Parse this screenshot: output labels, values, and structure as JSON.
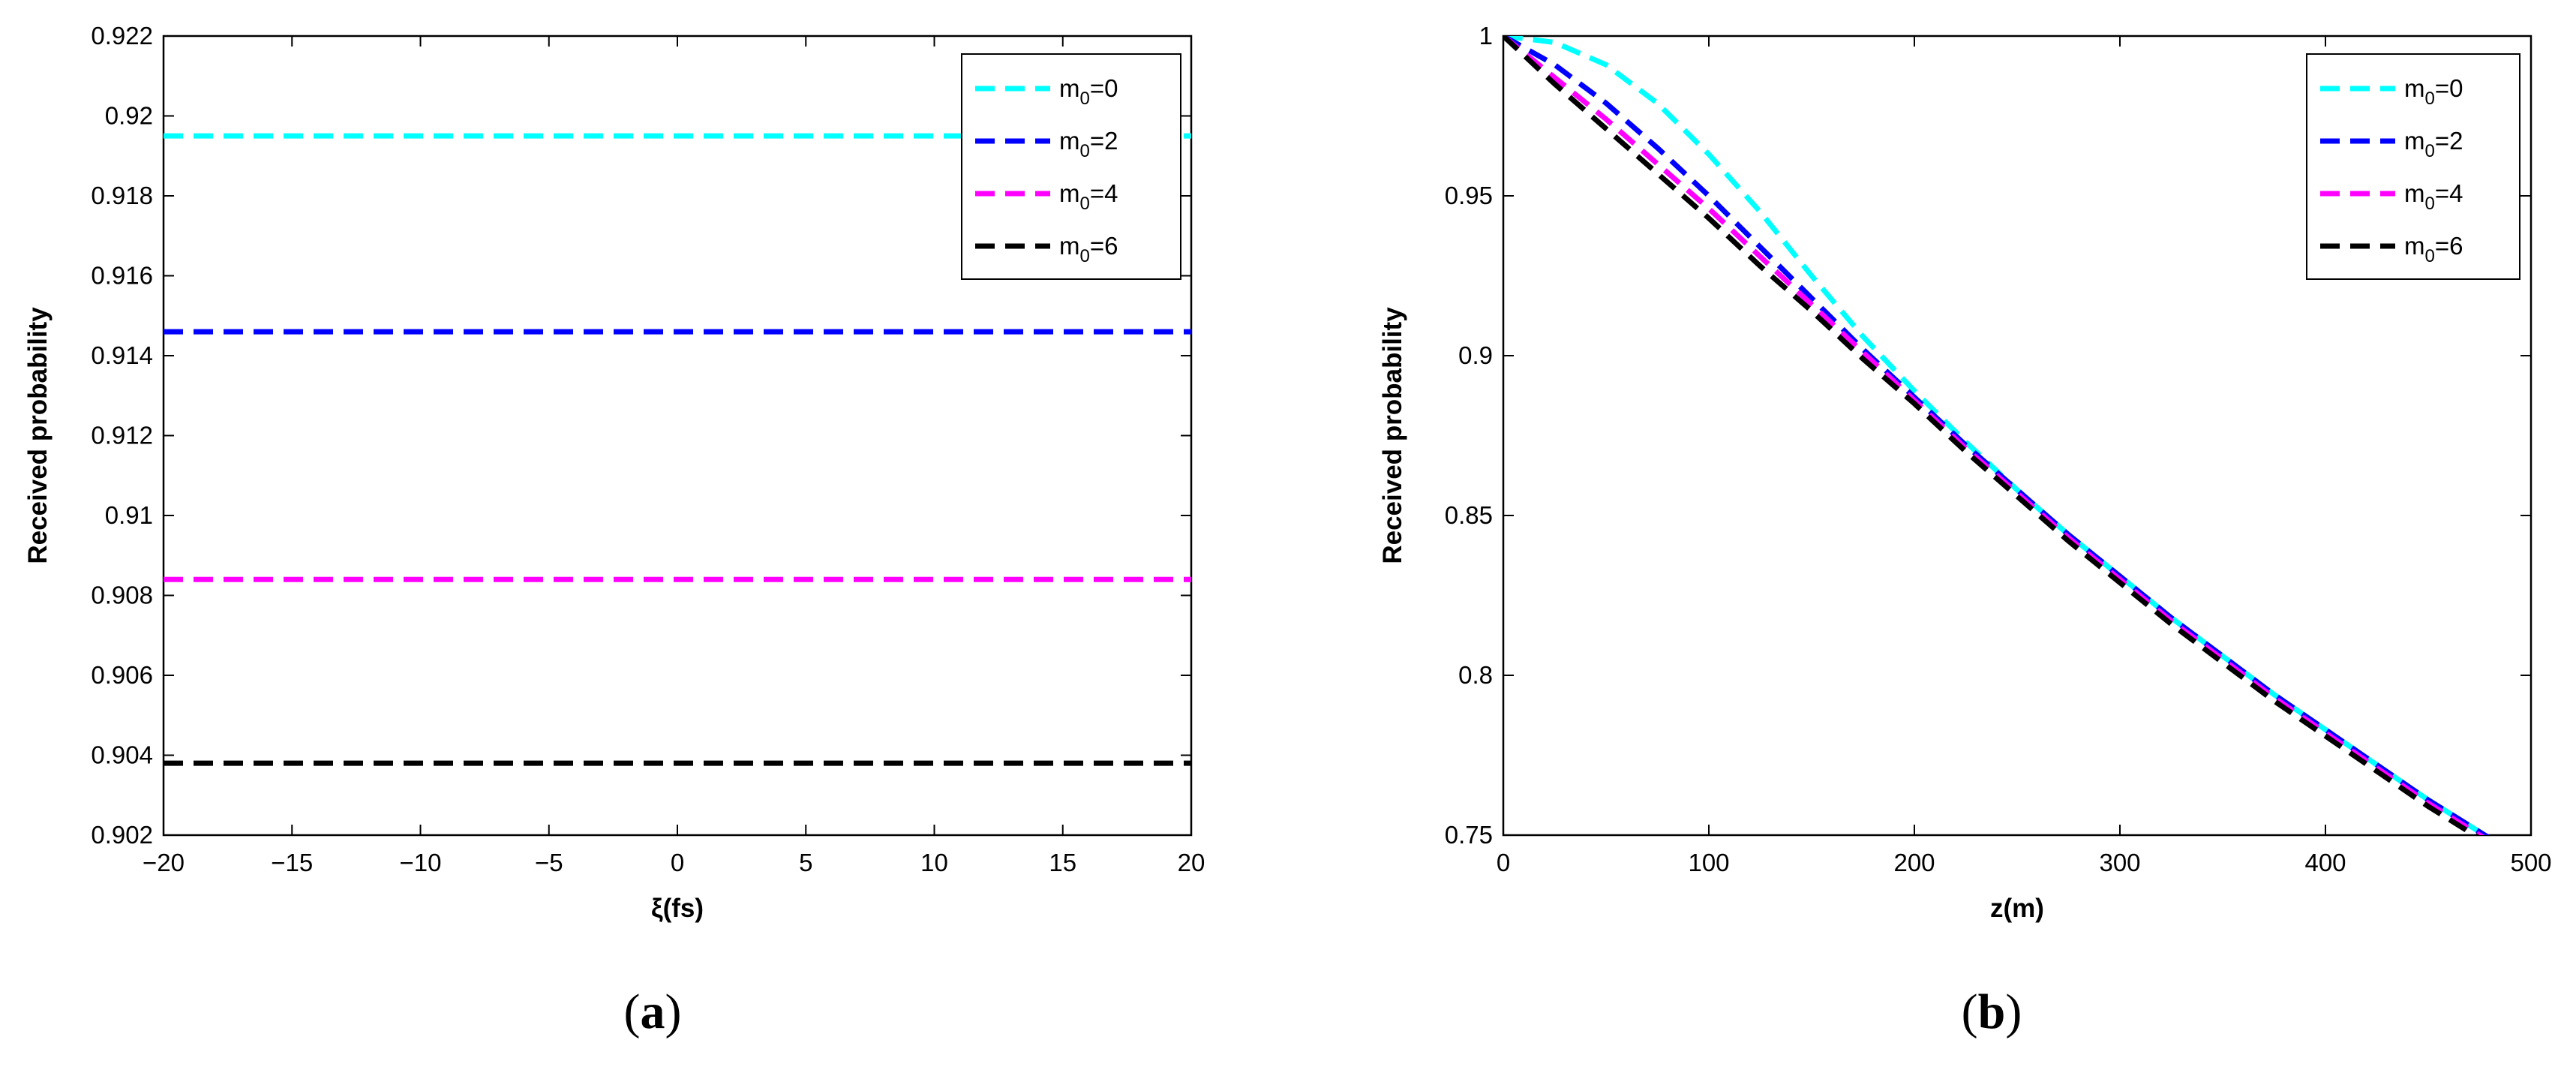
{
  "chart_data": [
    {
      "type": "line",
      "caption": "(a)",
      "caption_letter": "a",
      "xlabel": "ξ(fs)",
      "ylabel": "Received probability",
      "xlim": [
        -20,
        20
      ],
      "ylim": [
        0.902,
        0.922
      ],
      "xticks": [
        -20,
        -15,
        -10,
        -5,
        0,
        5,
        10,
        15,
        20
      ],
      "xtick_labels": [
        "−20",
        "−15",
        "−10",
        "−5",
        "0",
        "5",
        "10",
        "15",
        "20"
      ],
      "yticks": [
        0.902,
        0.904,
        0.906,
        0.908,
        0.91,
        0.912,
        0.914,
        0.916,
        0.918,
        0.92,
        0.922
      ],
      "ytick_labels": [
        "0.902",
        "0.904",
        "0.906",
        "0.908",
        "0.91",
        "0.912",
        "0.914",
        "0.916",
        "0.918",
        "0.92",
        "0.922"
      ],
      "grid": false,
      "legend_position": "top-right",
      "line_style": "dashed",
      "x": [
        -20,
        20
      ],
      "series": [
        {
          "name": "m0=0",
          "label_main": "m",
          "label_sub": "0",
          "label_rest": "=0",
          "color": "#00ffff",
          "values": [
            0.9195,
            0.9195
          ]
        },
        {
          "name": "m0=2",
          "label_main": "m",
          "label_sub": "0",
          "label_rest": "=2",
          "color": "#0000ff",
          "values": [
            0.9146,
            0.9146
          ]
        },
        {
          "name": "m0=4",
          "label_main": "m",
          "label_sub": "0",
          "label_rest": "=4",
          "color": "#ff00ff",
          "values": [
            0.9084,
            0.9084
          ]
        },
        {
          "name": "m0=6",
          "label_main": "m",
          "label_sub": "0",
          "label_rest": "=6",
          "color": "#000000",
          "values": [
            0.9038,
            0.9038
          ]
        }
      ]
    },
    {
      "type": "line",
      "caption": "(b)",
      "caption_letter": "b",
      "xlabel": "z(m)",
      "ylabel": "Received probability",
      "xlim": [
        0,
        500
      ],
      "ylim": [
        0.75,
        1
      ],
      "xticks": [
        0,
        100,
        200,
        300,
        400,
        500
      ],
      "xtick_labels": [
        "0",
        "100",
        "200",
        "300",
        "400",
        "500"
      ],
      "yticks": [
        0.75,
        0.8,
        0.85,
        0.9,
        0.95,
        1
      ],
      "ytick_labels": [
        "0.75",
        "0.8",
        "0.85",
        "0.9",
        "0.95",
        "1"
      ],
      "grid": false,
      "legend_position": "top-right",
      "line_style": "dashed",
      "x": [
        0,
        25,
        50,
        75,
        100,
        125,
        150,
        175,
        200,
        225,
        250,
        275,
        300,
        325,
        350,
        375,
        400,
        425,
        450,
        475,
        500
      ],
      "series": [
        {
          "name": "m0=0",
          "label_main": "m",
          "label_sub": "0",
          "label_rest": "=0",
          "color": "#00ffff",
          "values": [
            1.0,
            0.998,
            0.991,
            0.979,
            0.963,
            0.945,
            0.925,
            0.906,
            0.889,
            0.873,
            0.858,
            0.844,
            0.831,
            0.818,
            0.806,
            0.794,
            0.783,
            0.772,
            0.761,
            0.751,
            0.741
          ]
        },
        {
          "name": "m0=2",
          "label_main": "m",
          "label_sub": "0",
          "label_rest": "=2",
          "color": "#0000ff",
          "values": [
            1.0,
            0.991,
            0.979,
            0.965,
            0.95,
            0.934,
            0.918,
            0.902,
            0.887,
            0.872,
            0.858,
            0.844,
            0.831,
            0.818,
            0.806,
            0.794,
            0.783,
            0.772,
            0.761,
            0.751,
            0.741
          ]
        },
        {
          "name": "m0=4",
          "label_main": "m",
          "label_sub": "0",
          "label_rest": "=4",
          "color": "#ff00ff",
          "values": [
            1.0,
            0.987,
            0.974,
            0.96,
            0.946,
            0.931,
            0.916,
            0.901,
            0.886,
            0.871,
            0.857,
            0.843,
            0.83,
            0.817,
            0.805,
            0.793,
            0.782,
            0.771,
            0.76,
            0.75,
            0.74
          ]
        },
        {
          "name": "m0=6",
          "label_main": "m",
          "label_sub": "0",
          "label_rest": "=6",
          "color": "#000000",
          "values": [
            1.0,
            0.985,
            0.971,
            0.957,
            0.943,
            0.928,
            0.914,
            0.899,
            0.885,
            0.87,
            0.856,
            0.842,
            0.829,
            0.816,
            0.804,
            0.792,
            0.781,
            0.77,
            0.759,
            0.749,
            0.739
          ]
        }
      ]
    }
  ]
}
